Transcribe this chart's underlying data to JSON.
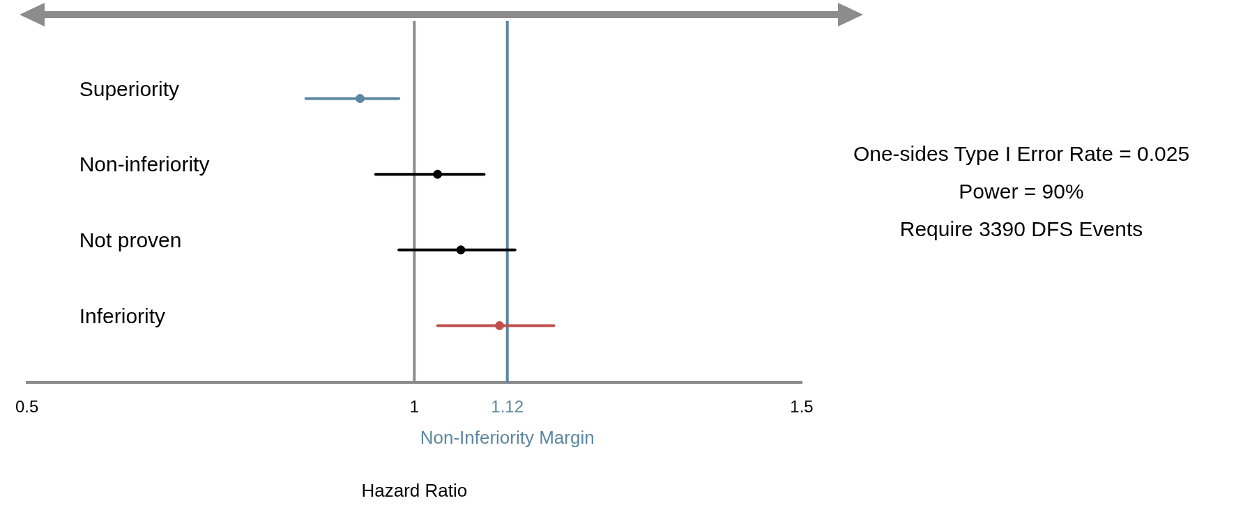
{
  "chart_data": {
    "type": "scatter",
    "orientation": "horizontal",
    "xlabel": "Hazard Ratio",
    "categories": [
      "Superiority",
      "Non-inferiority",
      "Not proven",
      "Inferiority"
    ],
    "values": [
      0.93,
      1.03,
      1.06,
      1.11
    ],
    "errors": [
      [
        0.86,
        0.98
      ],
      [
        0.95,
        1.09
      ],
      [
        0.98,
        1.13
      ],
      [
        1.03,
        1.18
      ]
    ],
    "colors": [
      "#5b87a0",
      "#000000",
      "#000000",
      "#c0504d"
    ],
    "xlim": [
      0.5,
      1.5
    ],
    "xticks": [
      0.5,
      1,
      1.12,
      1.5
    ],
    "ref_lines": [
      {
        "axis": "x",
        "value": 1,
        "color": "#8c8c8c"
      },
      {
        "axis": "x",
        "value": 1.12,
        "label": "Non-Inferiority Margin",
        "color": "#5b87a0"
      }
    ],
    "annotations": [
      "One-sides Type I Error Rate = 0.025",
      "Power = 90%",
      "Require 3390 DFS Events"
    ],
    "marker": "circle",
    "grid": false,
    "legend": false
  }
}
